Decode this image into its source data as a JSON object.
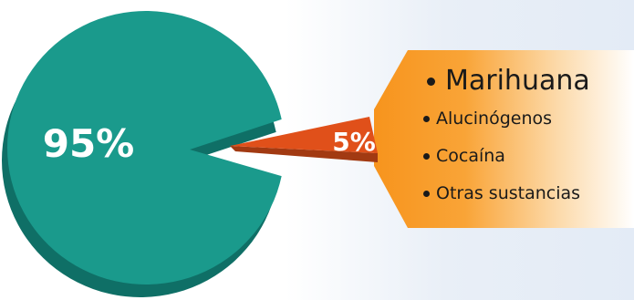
{
  "chart_data": {
    "type": "pie",
    "categories": [
      "Marihuana",
      "Alucinógenos",
      "Cocaína",
      "Otras sustancias"
    ],
    "slices": [
      {
        "label": "95%",
        "value": 95
      },
      {
        "label": "5%",
        "value": 5
      }
    ],
    "colors": {
      "large_slice": "#1a9a8c",
      "large_slice_shadow": "#0f6f66",
      "small_slice": "#e0501a",
      "small_slice_shadow": "#a23a12",
      "callout_start": "#f7941d",
      "callout_end": "#ffffff"
    }
  }
}
